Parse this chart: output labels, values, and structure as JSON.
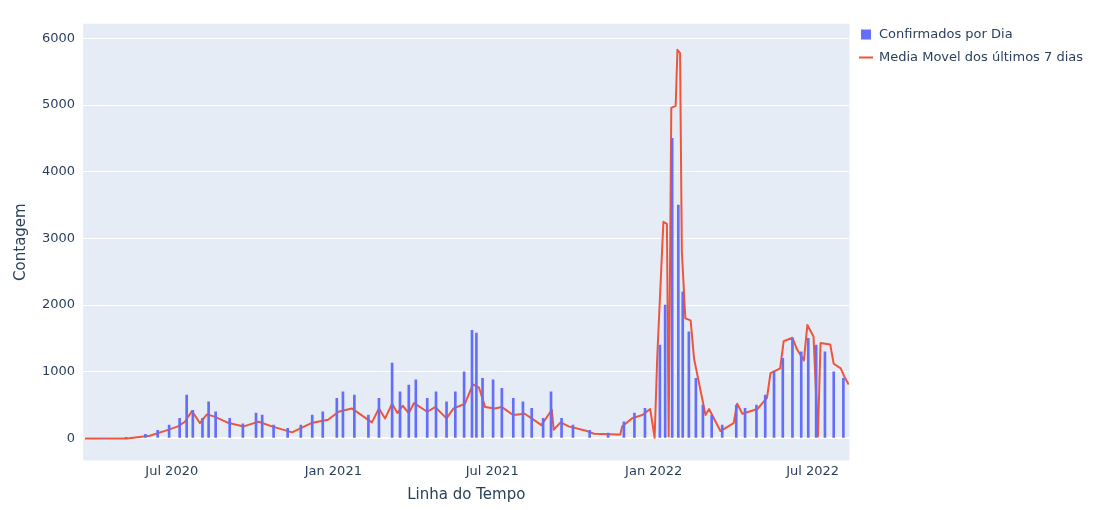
{
  "chart_data": {
    "type": "bar",
    "xlabel": "Linha do Tempo",
    "ylabel": "Contagem",
    "xlim": [
      "2020-03-22",
      "2022-08-12"
    ],
    "xticks": [
      {
        "value": "2020-07-01",
        "label": "Jul 2020"
      },
      {
        "value": "2021-01-01",
        "label": "Jan 2021"
      },
      {
        "value": "2021-07-01",
        "label": "Jul 2021"
      },
      {
        "value": "2022-01-01",
        "label": "Jan 2022"
      },
      {
        "value": "2022-07-01",
        "label": "Jul 2022"
      }
    ],
    "ylim": [
      -330,
      6220
    ],
    "yticks": [
      0,
      1000,
      2000,
      3000,
      4000,
      5000,
      6000
    ],
    "grid": "y",
    "legend": "top right",
    "series": [
      {
        "name": "Confirmados por Dia",
        "color": "#636efa",
        "x": [
          "2020-04-15",
          "2020-05-10",
          "2020-06-01",
          "2020-06-15",
          "2020-06-28",
          "2020-07-10",
          "2020-07-18",
          "2020-07-25",
          "2020-08-05",
          "2020-08-12",
          "2020-08-20",
          "2020-09-05",
          "2020-09-20",
          "2020-10-05",
          "2020-10-12",
          "2020-10-25",
          "2020-11-10",
          "2020-11-25",
          "2020-12-08",
          "2020-12-20",
          "2021-01-05",
          "2021-01-12",
          "2021-01-25",
          "2021-02-10",
          "2021-02-22",
          "2021-03-09",
          "2021-03-18",
          "2021-03-28",
          "2021-04-05",
          "2021-04-18",
          "2021-04-28",
          "2021-05-10",
          "2021-05-20",
          "2021-05-30",
          "2021-06-08",
          "2021-06-13",
          "2021-06-20",
          "2021-07-02",
          "2021-07-12",
          "2021-07-25",
          "2021-08-05",
          "2021-08-15",
          "2021-08-28",
          "2021-09-06",
          "2021-09-18",
          "2021-10-01",
          "2021-10-20",
          "2021-11-10",
          "2021-11-28",
          "2021-12-10",
          "2021-12-22",
          "2022-01-08",
          "2022-01-14",
          "2022-01-22",
          "2022-01-29",
          "2022-02-03",
          "2022-02-10",
          "2022-02-18",
          "2022-02-26",
          "2022-03-08",
          "2022-03-20",
          "2022-04-05",
          "2022-04-15",
          "2022-04-28",
          "2022-05-08",
          "2022-05-18",
          "2022-05-28",
          "2022-06-08",
          "2022-06-18",
          "2022-06-26",
          "2022-07-05",
          "2022-07-15",
          "2022-07-25",
          "2022-08-05"
        ],
        "values": [
          0,
          10,
          60,
          120,
          200,
          300,
          650,
          420,
          300,
          550,
          400,
          300,
          220,
          380,
          350,
          200,
          150,
          200,
          350,
          400,
          600,
          700,
          650,
          350,
          600,
          1130,
          700,
          800,
          880,
          600,
          700,
          550,
          700,
          1000,
          1620,
          1580,
          900,
          880,
          750,
          600,
          550,
          450,
          300,
          700,
          300,
          200,
          120,
          80,
          250,
          380,
          450,
          1400,
          2000,
          4500,
          3500,
          2200,
          1600,
          900,
          500,
          350,
          200,
          500,
          450,
          500,
          650,
          1000,
          1200,
          1500,
          1300,
          1500,
          1400,
          1300,
          1000,
          900
        ]
      },
      {
        "name": "Media Movel dos últimos 7 dias",
        "type": "line",
        "color": "#ef553b",
        "x": [
          "2020-03-24",
          "2020-05-11",
          "2020-06-06",
          "2020-06-25",
          "2020-07-08",
          "2020-07-16",
          "2020-07-24",
          "2020-08-02",
          "2020-08-10",
          "2020-08-18",
          "2020-09-04",
          "2020-09-21",
          "2020-10-08",
          "2020-10-23",
          "2020-11-15",
          "2020-12-07",
          "2020-12-26",
          "2021-01-07",
          "2021-01-22",
          "2021-02-14",
          "2021-02-22",
          "2021-03-01",
          "2021-03-09",
          "2021-03-15",
          "2021-03-21",
          "2021-03-28",
          "2021-04-03",
          "2021-04-18",
          "2021-04-27",
          "2021-05-10",
          "2021-05-18",
          "2021-05-31",
          "2021-06-09",
          "2021-06-16",
          "2021-06-23",
          "2021-07-04",
          "2021-07-12",
          "2021-07-25",
          "2021-08-07",
          "2021-08-15",
          "2021-08-26",
          "2021-09-07",
          "2021-09-09",
          "2021-09-17",
          "2021-09-26",
          "2021-10-17",
          "2021-10-25",
          "2021-11-20",
          "2021-11-24",
          "2021-11-26",
          "2021-12-07",
          "2021-12-19",
          "2021-12-28",
          "2022-01-02",
          "2022-01-05",
          "2022-01-12",
          "2022-01-16",
          "2022-01-18",
          "2022-01-21",
          "2022-01-26",
          "2022-01-28",
          "2022-01-31",
          "2022-02-02",
          "2022-02-06",
          "2022-02-12",
          "2022-02-16",
          "2022-02-25",
          "2022-03-01",
          "2022-03-05",
          "2022-03-18",
          "2022-04-02",
          "2022-04-06",
          "2022-04-12",
          "2022-04-29",
          "2022-05-10",
          "2022-05-14",
          "2022-05-25",
          "2022-05-29",
          "2022-06-08",
          "2022-06-13",
          "2022-06-21",
          "2022-06-25",
          "2022-07-02",
          "2022-07-07",
          "2022-07-10",
          "2022-07-21",
          "2022-07-25",
          "2022-08-02",
          "2022-08-06",
          "2022-08-11"
        ],
        "values": [
          0,
          0,
          40,
          120,
          180,
          250,
          410,
          230,
          360,
          330,
          230,
          180,
          250,
          180,
          90,
          230,
          280,
          400,
          450,
          240,
          450,
          300,
          520,
          380,
          490,
          380,
          530,
          400,
          470,
          300,
          450,
          520,
          810,
          760,
          470,
          450,
          470,
          350,
          370,
          300,
          200,
          430,
          130,
          240,
          180,
          110,
          70,
          60,
          60,
          180,
          300,
          350,
          440,
          10,
          1220,
          3250,
          3220,
          30,
          4960,
          4990,
          5830,
          5780,
          2810,
          1800,
          1770,
          1190,
          610,
          350,
          440,
          110,
          230,
          520,
          370,
          440,
          610,
          980,
          1050,
          1460,
          1510,
          1340,
          1170,
          1700,
          1530,
          30,
          1430,
          1410,
          1120,
          1050,
          930,
          810
        ]
      }
    ]
  }
}
